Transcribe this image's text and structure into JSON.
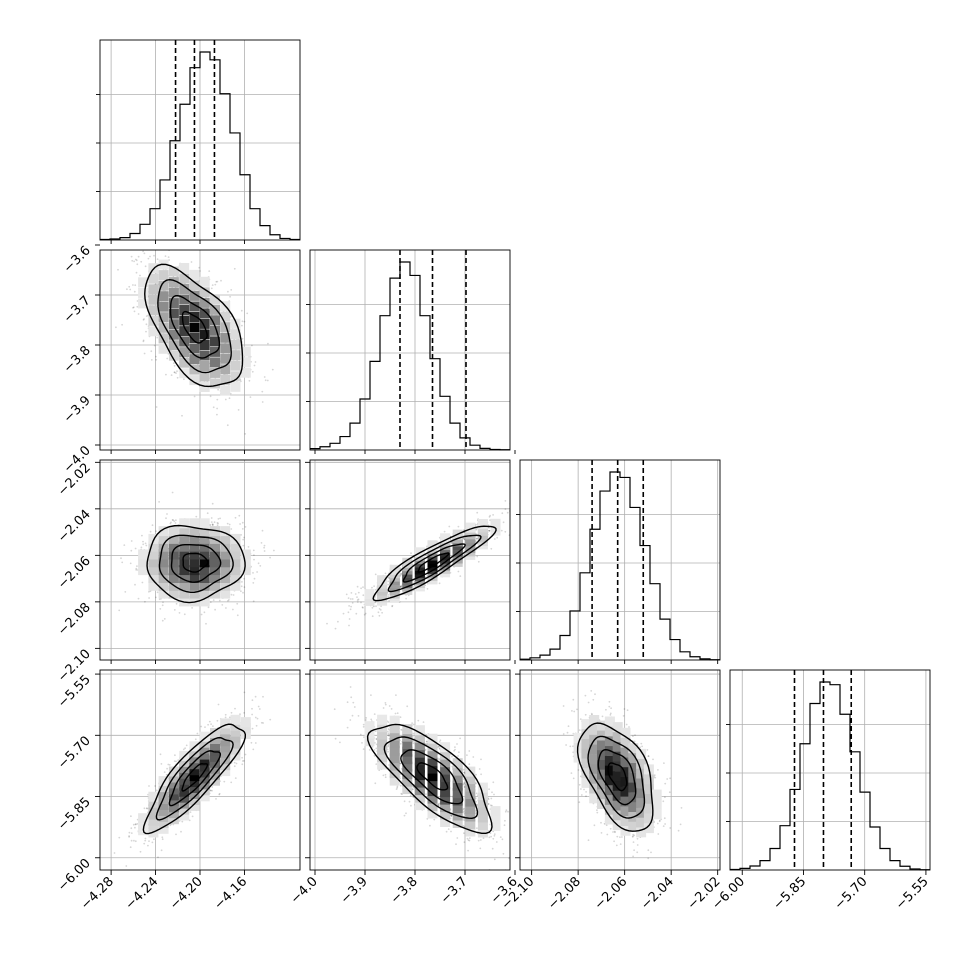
{
  "chart_data": {
    "type": "corner",
    "title": "",
    "grid": true,
    "parameters": [
      {
        "xlim": [
          -4.29,
          -4.11
        ],
        "ylim": [
          -3.61,
          -4.01
        ],
        "xticks": [
          "−4.28",
          "−4.24",
          "−4.20",
          "−4.16"
        ],
        "yticks": [
          "−3.6",
          "−3.7",
          "−3.8",
          "−3.9",
          "−4.0"
        ]
      },
      {
        "xlim": [
          -4.01,
          -3.61
        ],
        "ylim": [
          -2.019,
          -2.105
        ],
        "xticks": [
          "−4.0",
          "−3.9",
          "−3.8",
          "−3.7",
          "−3.6"
        ],
        "yticks": [
          "−2.02",
          "−2.04",
          "−2.06",
          "−2.08",
          "−2.10"
        ]
      },
      {
        "xlim": [
          -2.105,
          -2.019
        ],
        "ylim": [
          -5.54,
          -6.03
        ],
        "xticks": [
          "−2.10",
          "−2.08",
          "−2.06",
          "−2.04",
          "−2.02"
        ],
        "yticks": [
          "−5.55",
          "−5.70",
          "−5.85",
          "−6.00"
        ]
      },
      {
        "xlim": [
          -6.03,
          -5.54
        ],
        "xticks": [
          "−6.00",
          "−5.85",
          "−5.70",
          "−5.55"
        ]
      }
    ],
    "quantiles": [
      [
        -4.222,
        -4.205,
        -4.187
      ],
      [
        -3.83,
        -3.765,
        -3.698
      ],
      [
        -2.074,
        -2.063,
        -2.052
      ],
      [
        -5.872,
        -5.801,
        -5.733
      ]
    ],
    "histograms": [
      {
        "edges_start": -4.29,
        "bin_width": 0.009,
        "counts": [
          2,
          4,
          9,
          25,
          60,
          120,
          230,
          380,
          520,
          660,
          720,
          690,
          560,
          410,
          250,
          120,
          55,
          20,
          6,
          2
        ]
      },
      {
        "edges_start": -4.01,
        "bin_width": 0.02,
        "counts": [
          5,
          12,
          25,
          50,
          100,
          190,
          330,
          500,
          640,
          700,
          650,
          500,
          340,
          200,
          100,
          45,
          18,
          6,
          2,
          1
        ]
      },
      {
        "edges_start": -2.105,
        "bin_width": 0.0043,
        "counts": [
          3,
          8,
          18,
          40,
          90,
          180,
          320,
          480,
          620,
          690,
          670,
          560,
          420,
          280,
          150,
          75,
          30,
          12,
          4,
          1
        ]
      },
      {
        "edges_start": -6.03,
        "bin_width": 0.0245,
        "counts": [
          2,
          6,
          15,
          35,
          80,
          165,
          300,
          470,
          620,
          700,
          690,
          580,
          440,
          290,
          160,
          80,
          35,
          14,
          4,
          1
        ]
      }
    ],
    "panels_2d": [
      {
        "row": 1,
        "col": 0,
        "mean": [
          -4.205,
          -3.765
        ],
        "sd": [
          0.022,
          0.06
        ],
        "rho": -0.55
      },
      {
        "row": 2,
        "col": 0,
        "mean": [
          -4.205,
          -2.063
        ],
        "sd": [
          0.022,
          0.008
        ],
        "rho": 0.0
      },
      {
        "row": 2,
        "col": 1,
        "mean": [
          -3.765,
          -2.063
        ],
        "sd": [
          0.06,
          0.008
        ],
        "rho": 0.9
      },
      {
        "row": 3,
        "col": 0,
        "mean": [
          -4.205,
          -5.8
        ],
        "sd": [
          0.022,
          0.066
        ],
        "rho": 0.85
      },
      {
        "row": 3,
        "col": 1,
        "mean": [
          -3.765,
          -5.8
        ],
        "sd": [
          0.06,
          0.066
        ],
        "rho": -0.75
      },
      {
        "row": 3,
        "col": 2,
        "mean": [
          -2.063,
          -5.8
        ],
        "sd": [
          0.008,
          0.066
        ],
        "rho": -0.5
      }
    ],
    "contour_levels": [
      0.5,
      1.0,
      1.5,
      2.0
    ]
  }
}
